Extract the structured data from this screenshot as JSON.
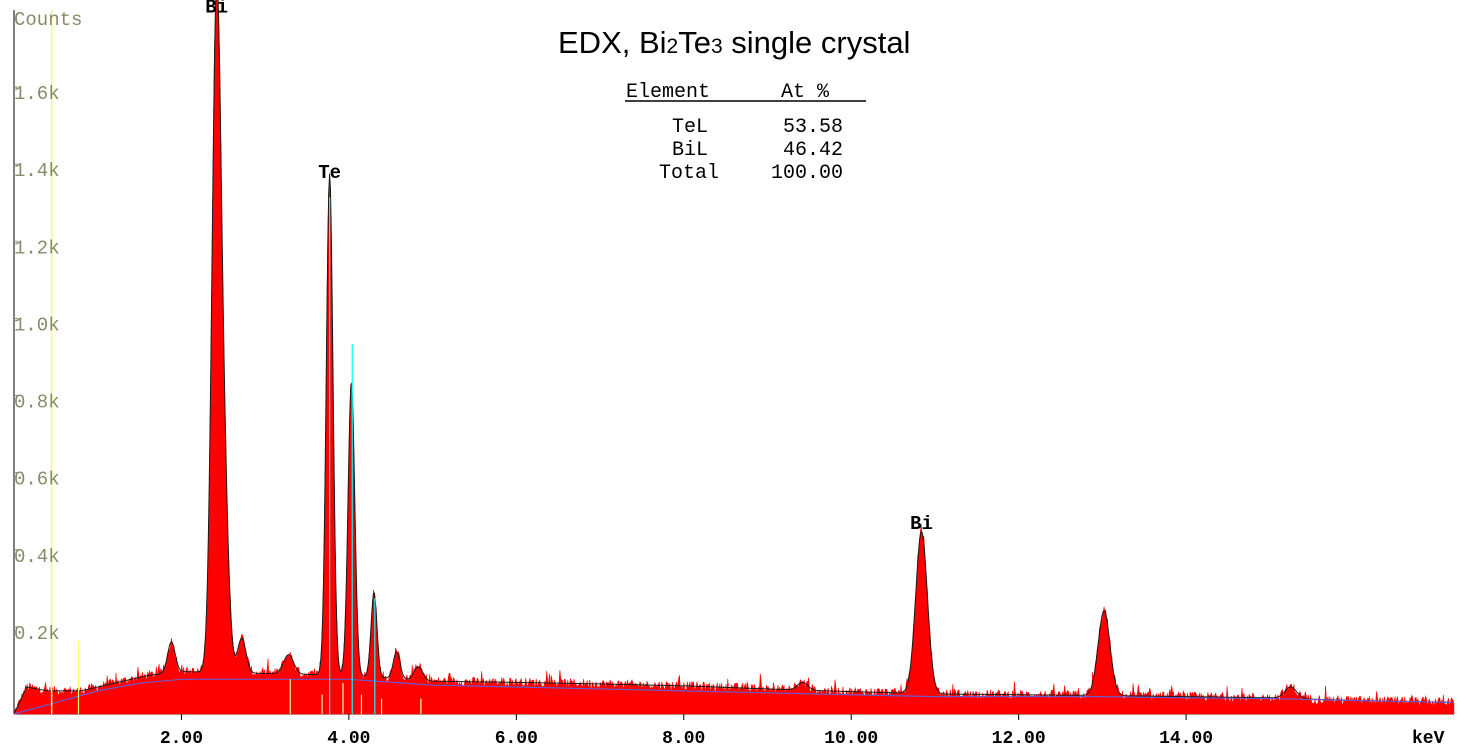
{
  "chart_data": {
    "type": "area",
    "title_parts": [
      "EDX, Bi",
      "2",
      "Te",
      "3",
      " single crystal"
    ],
    "ylabel": "Counts",
    "xlabel": "keV",
    "xlim": [
      0,
      17.2
    ],
    "ylim": [
      0,
      1.8
    ],
    "y_ticks": [
      {
        "v": 0.2,
        "label": "0.2k"
      },
      {
        "v": 0.4,
        "label": "0.4k"
      },
      {
        "v": 0.6,
        "label": "0.6k"
      },
      {
        "v": 0.8,
        "label": "0.8k"
      },
      {
        "v": 1.0,
        "label": "1.0k"
      },
      {
        "v": 1.2,
        "label": "1.2k"
      },
      {
        "v": 1.4,
        "label": "1.4k"
      },
      {
        "v": 1.6,
        "label": "1.6k"
      }
    ],
    "x_ticks": [
      {
        "v": 2,
        "label": "2.00"
      },
      {
        "v": 4,
        "label": "4.00"
      },
      {
        "v": 6,
        "label": "6.00"
      },
      {
        "v": 8,
        "label": "8.00"
      },
      {
        "v": 10,
        "label": "10.00"
      },
      {
        "v": 12,
        "label": "12.00"
      },
      {
        "v": 14,
        "label": "14.00"
      }
    ],
    "peak_labels": [
      {
        "text": "Bi",
        "x": 2.42,
        "y": 1.82
      },
      {
        "text": "Te",
        "x": 3.77,
        "y": 1.39
      },
      {
        "text": "Bi",
        "x": 10.84,
        "y": 0.48
      }
    ],
    "background": [
      [
        0,
        0.0
      ],
      [
        0.5,
        0.03
      ],
      [
        1.0,
        0.06
      ],
      [
        1.5,
        0.08
      ],
      [
        2.0,
        0.09
      ],
      [
        3.0,
        0.09
      ],
      [
        4.0,
        0.09
      ],
      [
        5.0,
        0.075
      ],
      [
        6.0,
        0.07
      ],
      [
        7.0,
        0.065
      ],
      [
        8.0,
        0.06
      ],
      [
        9.0,
        0.055
      ],
      [
        10.0,
        0.05
      ],
      [
        11.0,
        0.045
      ],
      [
        12.0,
        0.045
      ],
      [
        13.0,
        0.045
      ],
      [
        14.0,
        0.042
      ],
      [
        15.0,
        0.04
      ],
      [
        16.0,
        0.035
      ],
      [
        17.2,
        0.03
      ]
    ],
    "continuum_base": [
      [
        0.0,
        0.0
      ],
      [
        0.15,
        0.07
      ],
      [
        0.4,
        0.06
      ],
      [
        0.8,
        0.06
      ],
      [
        1.2,
        0.08
      ],
      [
        1.6,
        0.1
      ],
      [
        2.0,
        0.11
      ],
      [
        3.0,
        0.105
      ],
      [
        4.0,
        0.1
      ],
      [
        5.0,
        0.085
      ],
      [
        6.0,
        0.082
      ],
      [
        7.0,
        0.078
      ],
      [
        8.0,
        0.073
      ],
      [
        9.0,
        0.065
      ],
      [
        10.0,
        0.058
      ],
      [
        11.0,
        0.052
      ],
      [
        12.0,
        0.05
      ],
      [
        13.0,
        0.048
      ],
      [
        14.0,
        0.045
      ],
      [
        15.0,
        0.042
      ],
      [
        16.0,
        0.035
      ],
      [
        17.2,
        0.03
      ]
    ],
    "peaks": [
      {
        "center": 1.88,
        "height": 0.08,
        "width": 0.045
      },
      {
        "center": 2.42,
        "height": 1.75,
        "width": 0.055
      },
      {
        "center": 2.52,
        "height": 0.35,
        "width": 0.05
      },
      {
        "center": 2.72,
        "height": 0.09,
        "width": 0.05
      },
      {
        "center": 3.28,
        "height": 0.05,
        "width": 0.06
      },
      {
        "center": 3.77,
        "height": 1.3,
        "width": 0.04
      },
      {
        "center": 4.03,
        "height": 0.76,
        "width": 0.04
      },
      {
        "center": 4.3,
        "height": 0.22,
        "width": 0.035
      },
      {
        "center": 4.57,
        "height": 0.07,
        "width": 0.04
      },
      {
        "center": 4.83,
        "height": 0.035,
        "width": 0.05
      },
      {
        "center": 9.42,
        "height": 0.02,
        "width": 0.06
      },
      {
        "center": 10.84,
        "height": 0.42,
        "width": 0.07
      },
      {
        "center": 13.02,
        "height": 0.22,
        "width": 0.07
      },
      {
        "center": 15.25,
        "height": 0.03,
        "width": 0.07
      }
    ],
    "marker_lines": [
      {
        "x": 3.77,
        "y": 1.34,
        "color": "#00ffff"
      },
      {
        "x": 4.04,
        "y": 0.96,
        "color": "#00ffff"
      },
      {
        "x": 4.31,
        "y": 0.3,
        "color": "#00ffff"
      },
      {
        "x": 3.3,
        "y": 0.09,
        "color": "#ffff99"
      },
      {
        "x": 3.68,
        "y": 0.05,
        "color": "#ffff99"
      },
      {
        "x": 3.93,
        "y": 0.08,
        "color": "#ffff99"
      },
      {
        "x": 4.15,
        "y": 0.05,
        "color": "#ffff99"
      },
      {
        "x": 4.39,
        "y": 0.04,
        "color": "#ffff99"
      },
      {
        "x": 4.86,
        "y": 0.04,
        "color": "#ffff99"
      },
      {
        "x": 0.77,
        "y": 0.19,
        "color": "#ffff66"
      }
    ],
    "vertical_line": {
      "x": 0.45,
      "color": "#ffff66"
    },
    "table": {
      "headers": [
        "Element",
        "At %"
      ],
      "rows": [
        [
          "TeL",
          "53.58"
        ],
        [
          "BiL",
          "46.42"
        ],
        [
          "Total",
          "100.00"
        ]
      ]
    },
    "colors": {
      "fill": "#ff0000",
      "outline": "#1a1a1a",
      "background_line": "#6a5acd",
      "axis": "#000000",
      "y_label": "#8a8a6a"
    }
  }
}
